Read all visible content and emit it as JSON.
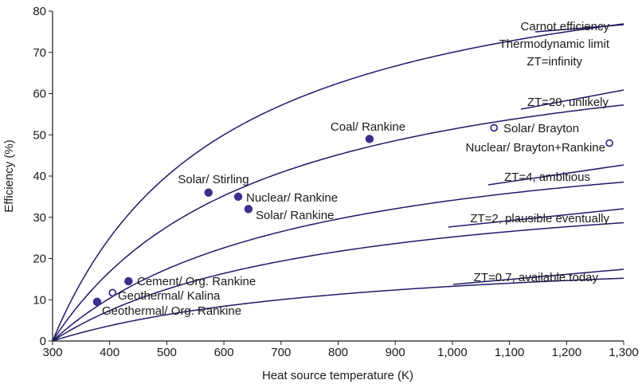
{
  "chart_data": {
    "type": "line",
    "title": "",
    "xlabel": "Heat source temperature (K)",
    "ylabel": "Efficiency (%)",
    "xlim": [
      300,
      1300
    ],
    "ylim": [
      0,
      80
    ],
    "x_ticks": [
      300,
      400,
      500,
      600,
      700,
      800,
      900,
      1000,
      1100,
      1200,
      1300
    ],
    "x_tick_labels": [
      "300",
      "400",
      "500",
      "600",
      "700",
      "800",
      "900",
      "1,000",
      "1,100",
      "1,200",
      "1,300"
    ],
    "y_ticks": [
      0,
      10,
      20,
      30,
      40,
      50,
      60,
      70,
      80
    ],
    "y_tick_labels": [
      "0",
      "10",
      "20",
      "30",
      "40",
      "50",
      "60",
      "70",
      "80"
    ],
    "grid": false,
    "cold_side_temperature": 300,
    "series": [
      {
        "key": "carnot",
        "zt": null,
        "name": "Carnot efficiency Thermodynamic limit ZT=infinity"
      },
      {
        "key": "zt20",
        "zt": 20,
        "name": "ZT=20, unlikely"
      },
      {
        "key": "zt4",
        "zt": 4,
        "name": "ZT=4, ambitious"
      },
      {
        "key": "zt2",
        "zt": 2,
        "name": "ZT=2, plausible eventually"
      },
      {
        "key": "zt07",
        "zt": 0.7,
        "name": "ZT=0.7, available today"
      }
    ],
    "annotations": [
      {
        "key": "carnot",
        "lines": [
          "Carnot efficiency",
          "Thermodynamic limit",
          "ZT=infinity"
        ]
      },
      {
        "key": "zt20",
        "lines": [
          "ZT=20, unlikely"
        ]
      },
      {
        "key": "zt4",
        "lines": [
          "ZT=4, ambitious"
        ]
      },
      {
        "key": "zt2",
        "lines": [
          "ZT=2, plausible eventually"
        ]
      },
      {
        "key": "zt07",
        "lines": [
          "ZT=0.7, available today"
        ]
      }
    ],
    "points": [
      {
        "label": "Coal/ Rankine",
        "x": 855,
        "y": 49,
        "filled": true
      },
      {
        "label": "Solar/ Brayton",
        "x": 1073,
        "y": 51.7,
        "filled": false
      },
      {
        "label": "Nuclear/ Brayton+Rankine",
        "x": 1275,
        "y": 48,
        "filled": false
      },
      {
        "label": "Solar/ Stirling",
        "x": 573,
        "y": 36,
        "filled": true
      },
      {
        "label": "Nuclear/ Rankine",
        "x": 625,
        "y": 35,
        "filled": true
      },
      {
        "label": "Solar/ Rankine",
        "x": 643,
        "y": 32,
        "filled": true
      },
      {
        "label": "Cement/ Org. Rankine",
        "x": 433,
        "y": 14.5,
        "filled": true
      },
      {
        "label": "Geothermal/ Kalina",
        "x": 405,
        "y": 11.7,
        "filled": false
      },
      {
        "label": "Geothermal/ Org. Rankine",
        "x": 378,
        "y": 9.5,
        "filled": true
      }
    ]
  },
  "colors": {
    "curve": "#1e1a66",
    "marker": "#3a2f8c",
    "text": "#1a1a1a"
  }
}
